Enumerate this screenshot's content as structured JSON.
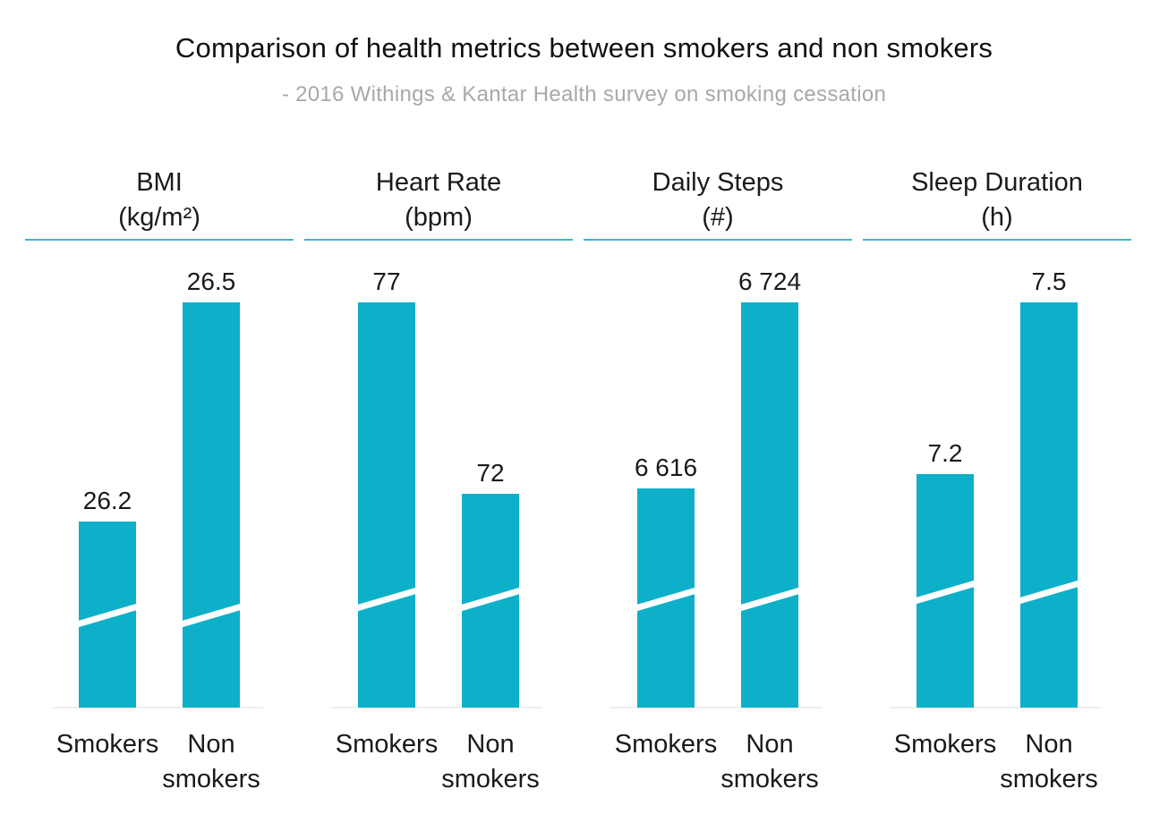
{
  "colors": {
    "bar": "#0db0c8",
    "header_line": "#3bb6d6",
    "baseline": "#e8e8e8",
    "break_mark": "#ffffff",
    "subtitle": "#a8a8a8"
  },
  "chart_data": {
    "type": "bar",
    "title": "Comparison of health metrics between smokers and non smokers",
    "subtitle": "- 2016 Withings & Kantar Health survey on smoking cessation",
    "axis_break": true,
    "panels": [
      {
        "title_line1": "BMI",
        "title_line2": "(kg/m²)",
        "categories": [
          [
            "Smokers"
          ],
          [
            "Non",
            "smokers"
          ]
        ],
        "values": [
          26.2,
          26.5
        ],
        "value_labels": [
          "26.2",
          "26.5"
        ]
      },
      {
        "title_line1": "Heart Rate",
        "title_line2": "(bpm)",
        "categories": [
          [
            "Smokers"
          ],
          [
            "Non",
            "smokers"
          ]
        ],
        "values": [
          77,
          72
        ],
        "value_labels": [
          "77",
          "72"
        ]
      },
      {
        "title_line1": "Daily Steps",
        "title_line2": "(#)",
        "categories": [
          [
            "Smokers"
          ],
          [
            "Non",
            "smokers"
          ]
        ],
        "values": [
          6616,
          6724
        ],
        "value_labels": [
          "6 616",
          "6 724"
        ]
      },
      {
        "title_line1": "Sleep Duration",
        "title_line2": "(h)",
        "categories": [
          [
            "Smokers"
          ],
          [
            "Non",
            "smokers"
          ]
        ],
        "values": [
          7.2,
          7.5
        ],
        "value_labels": [
          "7.2",
          "7.5"
        ]
      }
    ]
  }
}
